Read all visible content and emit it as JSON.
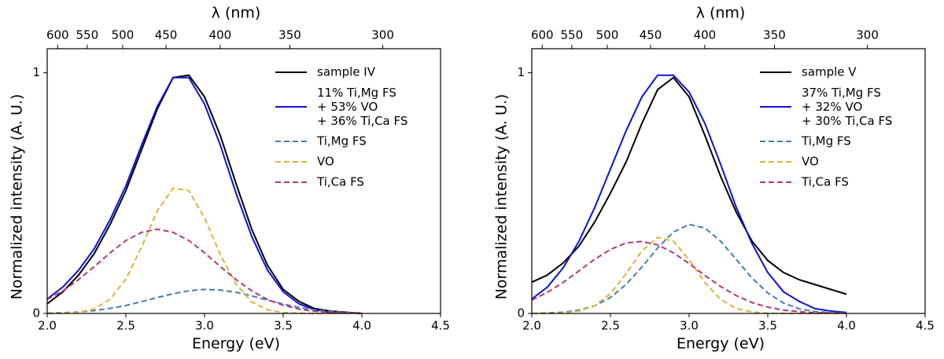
{
  "chart_data": [
    {
      "type": "line",
      "xlabel": "Energy (eV)",
      "ylabel": "Normalized intensity (A. U.)",
      "x2label": "λ (nm)",
      "x": [
        2.0,
        2.1,
        2.2,
        2.3,
        2.4,
        2.5,
        2.6,
        2.7,
        2.8,
        2.9,
        3.0,
        3.1,
        3.2,
        3.3,
        3.4,
        3.5,
        3.6,
        3.7,
        3.8,
        3.9,
        4.0
      ],
      "xlim": [
        2.0,
        4.5
      ],
      "xticks": [
        {
          "value": 2,
          "label": "2.0"
        },
        2.5,
        {
          "value": 3,
          "label": "3.0"
        },
        3.5,
        {
          "value": 4,
          "label": "4.0"
        },
        4.5
      ],
      "x2ticks": [
        600,
        550,
        500,
        450,
        400,
        350,
        300
      ],
      "ylim": [
        0,
        1.1
      ],
      "yticks": [
        0,
        1
      ],
      "legend": "upper right",
      "series": [
        {
          "name": "sample IV",
          "color": "#000000",
          "style": "solid",
          "values": [
            0.04,
            0.09,
            0.16,
            0.25,
            0.37,
            0.51,
            0.68,
            0.85,
            0.98,
            0.99,
            0.9,
            0.74,
            0.54,
            0.35,
            0.2,
            0.1,
            0.05,
            0.02,
            0.01,
            0.005,
            0
          ]
        },
        {
          "name": "11% Ti,Mg FS\n+ 53% VO\n+ 36% Ti,Ca FS",
          "color": "#1010d0",
          "style": "solid",
          "values": [
            0.06,
            0.11,
            0.18,
            0.27,
            0.39,
            0.53,
            0.7,
            0.86,
            0.98,
            0.98,
            0.87,
            0.7,
            0.5,
            0.32,
            0.18,
            0.09,
            0.04,
            0.015,
            0.005,
            0.002,
            0
          ]
        },
        {
          "name": "Ti,Mg FS",
          "color": "#4a7bac",
          "style": "dashed",
          "values": [
            0.001,
            0.003,
            0.006,
            0.012,
            0.021,
            0.033,
            0.049,
            0.066,
            0.082,
            0.094,
            0.1,
            0.097,
            0.088,
            0.073,
            0.055,
            0.039,
            0.025,
            0.015,
            0.008,
            0.004,
            0.002
          ]
        },
        {
          "name": "VO",
          "color": "#d4b63e",
          "style": "dashed",
          "values": [
            0,
            0.001,
            0.005,
            0.019,
            0.059,
            0.143,
            0.276,
            0.426,
            0.52,
            0.51,
            0.397,
            0.245,
            0.122,
            0.048,
            0.015,
            0.004,
            0.001,
            0,
            0,
            0,
            0
          ]
        },
        {
          "name": "Ti,Ca FS",
          "color": "#b03a74",
          "style": "dashed",
          "values": [
            0.058,
            0.094,
            0.141,
            0.195,
            0.252,
            0.303,
            0.337,
            0.35,
            0.337,
            0.303,
            0.252,
            0.195,
            0.141,
            0.094,
            0.058,
            0.034,
            0.018,
            0.009,
            0.004,
            0.002,
            0.001
          ]
        }
      ]
    },
    {
      "type": "line",
      "xlabel": "Energy (eV)",
      "ylabel": "Normalized intensity (A. U.)",
      "x2label": "λ (nm)",
      "x": [
        2.0,
        2.1,
        2.2,
        2.3,
        2.4,
        2.5,
        2.6,
        2.7,
        2.8,
        2.9,
        3.0,
        3.1,
        3.2,
        3.3,
        3.4,
        3.5,
        3.6,
        3.7,
        3.8,
        3.9,
        4.0
      ],
      "xlim": [
        2.0,
        4.5
      ],
      "xticks": [
        {
          "value": 2,
          "label": "2.0"
        },
        2.5,
        {
          "value": 3,
          "label": "3.0"
        },
        3.5,
        {
          "value": 4,
          "label": "4.0"
        },
        4.5
      ],
      "x2ticks": [
        600,
        550,
        500,
        450,
        400,
        350,
        300
      ],
      "ylim": [
        0,
        1.1
      ],
      "yticks": [
        0,
        1
      ],
      "legend": "upper right",
      "series": [
        {
          "name": "sample V",
          "color": "#000000",
          "style": "solid",
          "values": [
            0.13,
            0.16,
            0.21,
            0.28,
            0.38,
            0.5,
            0.63,
            0.79,
            0.93,
            0.98,
            0.9,
            0.74,
            0.57,
            0.42,
            0.3,
            0.22,
            0.17,
            0.14,
            0.12,
            0.1,
            0.08
          ]
        },
        {
          "name": "37% Ti,Mg FS\n+ 32% VO\n+ 30% Ti,Ca FS",
          "color": "#1010d0",
          "style": "solid",
          "values": [
            0.06,
            0.11,
            0.19,
            0.3,
            0.44,
            0.6,
            0.76,
            0.9,
            0.99,
            0.99,
            0.92,
            0.79,
            0.62,
            0.44,
            0.29,
            0.17,
            0.09,
            0.05,
            0.02,
            0.01,
            0.004
          ]
        },
        {
          "name": "Ti,Mg FS",
          "color": "#4a7bac",
          "style": "dashed",
          "values": [
            0,
            0.002,
            0.005,
            0.014,
            0.032,
            0.066,
            0.121,
            0.193,
            0.272,
            0.338,
            0.37,
            0.355,
            0.3,
            0.224,
            0.147,
            0.085,
            0.043,
            0.019,
            0.008,
            0.003,
            0.001
          ]
        },
        {
          "name": "VO",
          "color": "#d4b63e",
          "style": "dashed",
          "values": [
            0,
            0,
            0.002,
            0.01,
            0.032,
            0.082,
            0.166,
            0.26,
            0.316,
            0.3,
            0.223,
            0.129,
            0.058,
            0.02,
            0.006,
            0.001,
            0,
            0,
            0,
            0,
            0
          ]
        },
        {
          "name": "Ti,Ca FS",
          "color": "#b03a74",
          "style": "dashed",
          "values": [
            0.055,
            0.088,
            0.129,
            0.177,
            0.225,
            0.266,
            0.293,
            0.299,
            0.285,
            0.252,
            0.207,
            0.158,
            0.112,
            0.074,
            0.045,
            0.026,
            0.014,
            0.007,
            0.003,
            0.002,
            0.001
          ]
        }
      ]
    }
  ]
}
